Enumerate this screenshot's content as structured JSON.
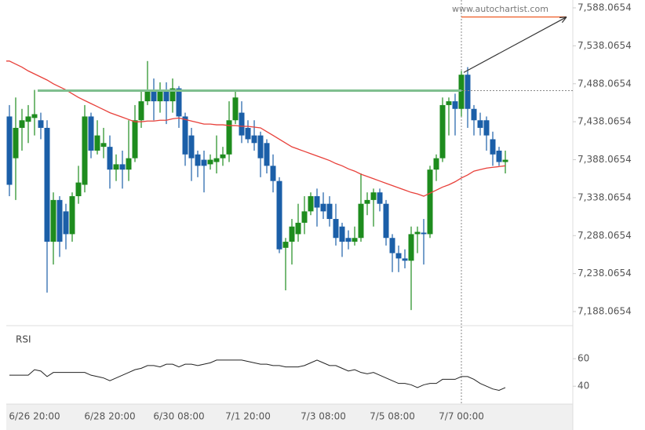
{
  "chart_data": [
    {
      "type": "candlestick",
      "watermark": "www.autochartist.com",
      "categories": [
        null,
        null,
        null,
        null,
        "6/26 20:00",
        null,
        null,
        null,
        null,
        null,
        null,
        null,
        null,
        null,
        null,
        null,
        "6/28 20:00",
        null,
        null,
        null,
        null,
        null,
        null,
        null,
        null,
        null,
        null,
        "6/30 08:00",
        null,
        null,
        null,
        null,
        null,
        null,
        null,
        null,
        null,
        null,
        "7/1 20:00",
        null,
        null,
        null,
        null,
        null,
        null,
        null,
        null,
        null,
        null,
        null,
        "7/3 08:00",
        null,
        null,
        null,
        null,
        null,
        null,
        null,
        null,
        null,
        null,
        "7/5 08:00",
        null,
        null,
        null,
        null,
        null,
        null,
        null,
        null,
        null,
        null,
        "7/7 00:00",
        null,
        null,
        null,
        null,
        null,
        null,
        null
      ],
      "open": [
        7445,
        7390,
        7430,
        7438,
        7443,
        7440,
        7430,
        7280,
        7335,
        7320,
        7290,
        7340,
        7355,
        7445,
        7400,
        7405,
        7405,
        7375,
        7382,
        7375,
        7390,
        7440,
        7465,
        7480,
        7465,
        7480,
        7465,
        7482,
        7445,
        7420,
        7395,
        7388,
        7382,
        7385,
        7390,
        7395,
        7440,
        7450,
        7430,
        7420,
        7420,
        7410,
        7380,
        7360,
        7272,
        7280,
        7290,
        7305,
        7320,
        7340,
        7330,
        7330,
        7310,
        7300,
        7285,
        7280,
        7285,
        7330,
        7335,
        7345,
        7330,
        7285,
        7265,
        7258,
        7255,
        7290,
        7292,
        7290,
        7375,
        7390,
        7460,
        7465,
        7455,
        7500,
        7455,
        7440,
        7440,
        7415,
        7400,
        7385
      ],
      "high": [
        7460,
        7470,
        7455,
        7460,
        7480,
        7450,
        7440,
        7345,
        7340,
        7330,
        7345,
        7380,
        7460,
        7450,
        7440,
        7430,
        7420,
        7395,
        7400,
        7440,
        7460,
        7480,
        7518,
        7495,
        7490,
        7490,
        7495,
        7485,
        7450,
        7430,
        7400,
        7400,
        7395,
        7420,
        7405,
        7465,
        7480,
        7465,
        7440,
        7440,
        7425,
        7415,
        7395,
        7365,
        7285,
        7310,
        7330,
        7340,
        7345,
        7350,
        7345,
        7340,
        7330,
        7305,
        7295,
        7300,
        7370,
        7345,
        7350,
        7350,
        7335,
        7290,
        7275,
        7270,
        7300,
        7300,
        7310,
        7380,
        7395,
        7470,
        7470,
        7475,
        7505,
        7510,
        7460,
        7450,
        7445,
        7425,
        7405,
        7400
      ],
      "low": [
        7340,
        7335,
        7400,
        7410,
        7420,
        7415,
        7213,
        7250,
        7260,
        7270,
        7280,
        7330,
        7345,
        7390,
        7395,
        7390,
        7350,
        7360,
        7350,
        7360,
        7385,
        7430,
        7460,
        7440,
        7450,
        7435,
        7450,
        7430,
        7380,
        7360,
        7365,
        7345,
        7375,
        7370,
        7380,
        7385,
        7435,
        7410,
        7410,
        7400,
        7365,
        7370,
        7345,
        7265,
        7216,
        7250,
        7280,
        7290,
        7315,
        7300,
        7310,
        7300,
        7275,
        7260,
        7270,
        7275,
        7280,
        7315,
        7300,
        7320,
        7275,
        7240,
        7240,
        7245,
        7190,
        7265,
        7250,
        7285,
        7360,
        7385,
        7420,
        7420,
        7445,
        7430,
        7420,
        7420,
        7400,
        7380,
        7380,
        7370
      ],
      "close": [
        7355,
        7430,
        7440,
        7445,
        7448,
        7430,
        7280,
        7335,
        7280,
        7290,
        7340,
        7358,
        7445,
        7400,
        7420,
        7410,
        7375,
        7382,
        7375,
        7390,
        7440,
        7465,
        7480,
        7465,
        7480,
        7465,
        7482,
        7445,
        7395,
        7390,
        7380,
        7380,
        7388,
        7390,
        7395,
        7440,
        7470,
        7420,
        7415,
        7410,
        7390,
        7380,
        7360,
        7270,
        7280,
        7300,
        7305,
        7320,
        7340,
        7325,
        7320,
        7310,
        7285,
        7280,
        7280,
        7285,
        7330,
        7335,
        7345,
        7330,
        7285,
        7265,
        7258,
        7255,
        7290,
        7293,
        7290,
        7375,
        7390,
        7460,
        7465,
        7455,
        7500,
        7455,
        7440,
        7430,
        7420,
        7395,
        7385,
        7388
      ],
      "ma": [
        7518,
        7514,
        7510,
        7505,
        7501,
        7497,
        7493,
        7488,
        7484,
        7480,
        7475,
        7470,
        7466,
        7462,
        7458,
        7454,
        7450,
        7447,
        7444,
        7441,
        7438,
        7438,
        7439,
        7439,
        7440,
        7440,
        7442,
        7443,
        7441,
        7439,
        7437,
        7435,
        7435,
        7434,
        7434,
        7433,
        7433,
        7432,
        7432,
        7431,
        7430,
        7425,
        7420,
        7415,
        7410,
        7405,
        7402,
        7399,
        7396,
        7393,
        7390,
        7387,
        7383,
        7380,
        7376,
        7373,
        7369,
        7366,
        7363,
        7360,
        7357,
        7354,
        7351,
        7348,
        7345,
        7343,
        7340,
        7344,
        7348,
        7352,
        7355,
        7359,
        7364,
        7368,
        7373,
        7375,
        7377,
        7378,
        7379,
        7380
      ],
      "up_color": "#1e8c1e",
      "down_color": "#1b5fa8",
      "ma_color": "#e8403a",
      "level": 7479,
      "level_color": "#7fbf8f",
      "target": 7576,
      "target_color": "#f07040",
      "ylim": [
        7169.5,
        7598.4
      ],
      "yticks": [
        {
          "value": 7188.0654,
          "label": "7,188.0654"
        },
        {
          "value": 7238.0654,
          "label": "7,238.0654"
        },
        {
          "value": 7288.0654,
          "label": "7,288.0654"
        },
        {
          "value": 7338.0654,
          "label": "7,338.0654"
        },
        {
          "value": 7388.0654,
          "label": "7,388.0654"
        },
        {
          "value": 7438.0654,
          "label": "7,438.0654"
        },
        {
          "value": 7488.0654,
          "label": "7,488.0654"
        },
        {
          "value": 7538.0654,
          "label": "7,538.0654"
        },
        {
          "value": 7588.0654,
          "label": "7,588.0654"
        }
      ]
    },
    {
      "type": "line",
      "title": "RSI",
      "color": "#222222",
      "values": [
        48,
        48,
        48,
        48,
        52,
        51,
        47,
        50,
        50,
        50,
        50,
        50,
        50,
        48,
        47,
        46,
        44,
        46,
        48,
        50,
        52,
        53,
        55,
        55,
        54,
        56,
        56,
        54,
        56,
        56,
        55,
        56,
        57,
        59,
        59,
        59,
        59,
        59,
        58,
        57,
        56,
        56,
        55,
        55,
        54,
        54,
        54,
        55,
        57,
        59,
        57,
        55,
        55,
        53,
        51,
        52,
        50,
        49,
        50,
        48,
        46,
        44,
        42,
        42,
        41,
        39,
        41,
        42,
        42,
        45,
        45,
        45,
        47,
        47,
        45,
        42,
        40,
        38,
        37,
        39
      ],
      "ylim": [
        27,
        84
      ],
      "yticks": [
        40,
        60
      ]
    }
  ]
}
